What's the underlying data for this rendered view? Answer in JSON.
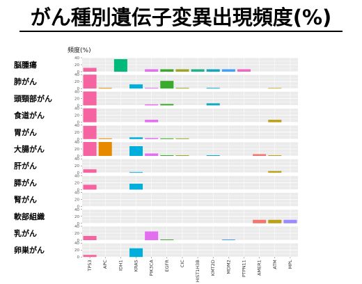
{
  "title": "がん種別遺伝子変異出現頻度(%)",
  "chart_data": {
    "type": "bar",
    "ylabel": "頻度(%)",
    "ylim": [
      0,
      40
    ],
    "yticks": [
      0,
      20,
      40
    ],
    "grid": true,
    "categories": [
      "TP53",
      "APC",
      "IDH1",
      "KRAS",
      "PIK3CA",
      "EGFR",
      "CIC",
      "HIST1H3B",
      "KMT2D",
      "MDM2",
      "PTPN11",
      "AMER1",
      "ATM",
      "MPL"
    ],
    "colors": [
      "#F564A0",
      "#E88A00",
      "#00BA7C",
      "#00AEDC",
      "#E36EF0",
      "#3AAA2C",
      "#9CA624",
      "#1FB28C",
      "#10A9C0",
      "#3FA0FF",
      "#F066C6",
      "#F2766D",
      "#BBA11A",
      "#9A8CFF"
    ],
    "series": [
      {
        "name": "脳腫瘍",
        "values": [
          11,
          0,
          36,
          0,
          7,
          7,
          7,
          7,
          7,
          7,
          7,
          0,
          0,
          0
        ]
      },
      {
        "name": "肺がん",
        "values": [
          40,
          2,
          0,
          12,
          2,
          22,
          2,
          0,
          2,
          0,
          0,
          0,
          1,
          0
        ]
      },
      {
        "name": "頭頸部がん",
        "values": [
          45,
          0,
          0,
          0,
          3,
          4,
          0,
          0,
          6,
          0,
          0,
          0,
          0,
          0
        ]
      },
      {
        "name": "食道がん",
        "values": [
          42,
          0,
          0,
          0,
          7,
          0,
          0,
          0,
          0,
          0,
          0,
          0,
          7,
          0
        ]
      },
      {
        "name": "胃がん",
        "values": [
          38,
          2,
          0,
          5,
          3,
          2,
          2,
          0,
          0,
          0,
          0,
          0,
          0,
          0
        ]
      },
      {
        "name": "大腸がん",
        "values": [
          42,
          42,
          0,
          28,
          7,
          2,
          2,
          0,
          2,
          0,
          0,
          5,
          2,
          0
        ]
      },
      {
        "name": "肝がん",
        "values": [
          10,
          0,
          0,
          2,
          0,
          0,
          0,
          0,
          0,
          0,
          0,
          0,
          5,
          0
        ]
      },
      {
        "name": "膵がん",
        "values": [
          14,
          0,
          0,
          17,
          0,
          0,
          0,
          0,
          0,
          0,
          0,
          0,
          0,
          0
        ]
      },
      {
        "name": "腎がん",
        "values": [
          0,
          0,
          0,
          0,
          0,
          0,
          0,
          0,
          0,
          0,
          0,
          0,
          0,
          0
        ]
      },
      {
        "name": "軟部組織",
        "values": [
          0,
          0,
          0,
          0,
          0,
          0,
          0,
          0,
          0,
          0,
          0,
          10,
          10,
          10
        ]
      },
      {
        "name": "乳がん",
        "values": [
          12,
          0,
          0,
          0,
          25,
          2,
          0,
          0,
          0,
          2,
          0,
          0,
          0,
          0
        ]
      },
      {
        "name": "卵巣がん",
        "values": [
          6,
          0,
          0,
          25,
          0,
          0,
          0,
          0,
          0,
          0,
          0,
          0,
          0,
          0
        ]
      }
    ]
  }
}
